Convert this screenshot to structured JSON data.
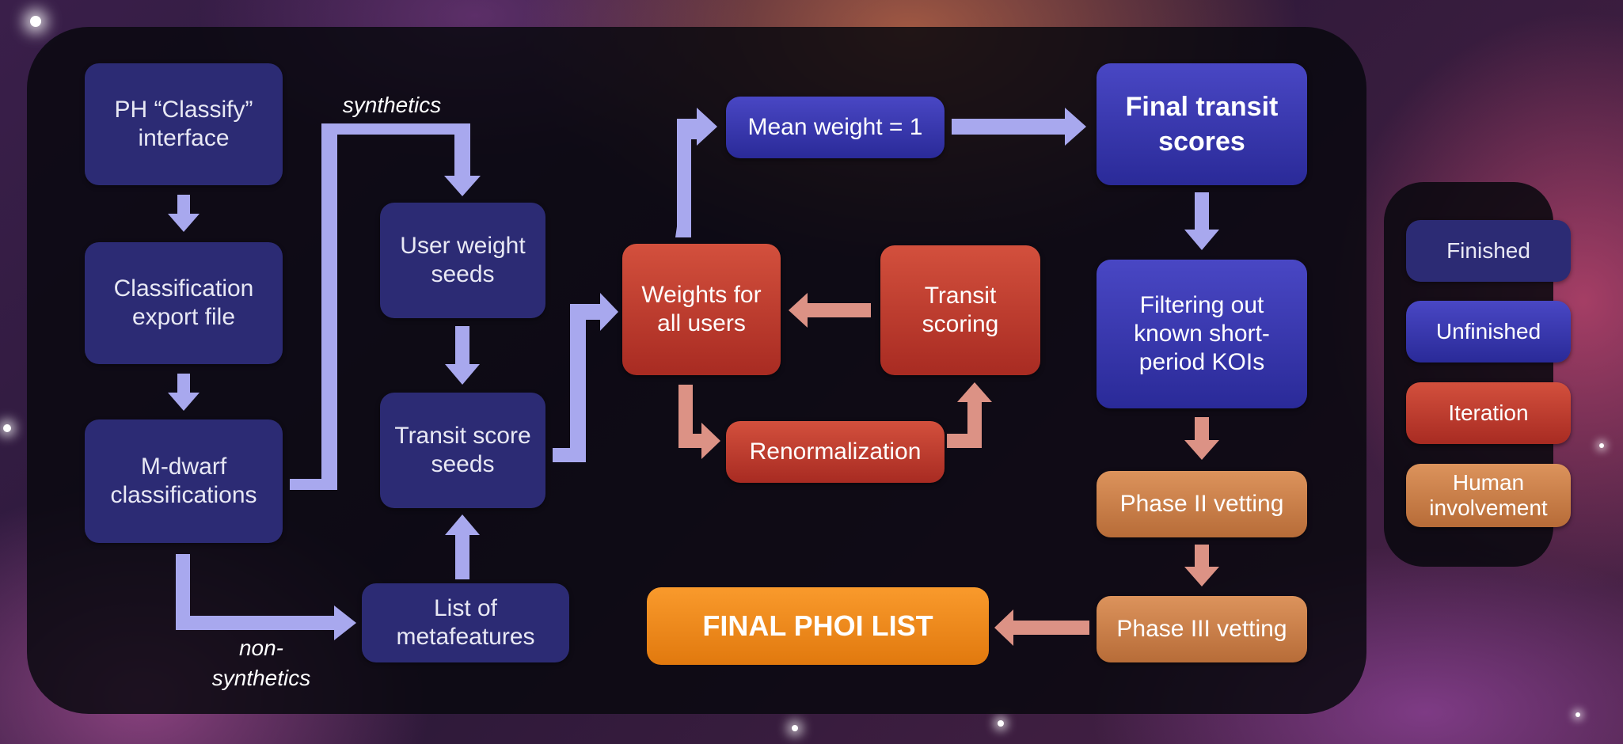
{
  "nodes": {
    "ph_classify": "PH “Classify” interface",
    "classification_export": "Classification export file",
    "mdwarf": "M-dwarf classifications",
    "user_weight_seeds": "User weight seeds",
    "transit_score_seeds": "Transit score seeds",
    "metafeatures": "List of metafeatures",
    "weights_all_users": "Weights for all users",
    "transit_scoring": "Transit scoring",
    "renormalization": "Renormalization",
    "mean_weight": "Mean weight = 1",
    "final_transit_scores": "Final transit scores",
    "filtering": "Filtering out known short-period KOIs",
    "phase2": "Phase II vetting",
    "phase3": "Phase III vetting",
    "final_list": "FINAL PHOI LIST"
  },
  "labels": {
    "synthetics": "synthetics",
    "non_synthetics_1": "non-",
    "non_synthetics_2": "synthetics"
  },
  "legend": {
    "finished": "Finished",
    "unfinished": "Unfinished",
    "iteration": "Iteration",
    "human": "Human involvement"
  },
  "colors": {
    "finished": "#2c2b74",
    "unfinished": "#3b39b4",
    "iteration": "#c03d30",
    "human": "#cc8049",
    "final_list": "#f08a1c",
    "arrow_blue": "#a8a8ee",
    "arrow_salmon": "#dc9285"
  }
}
